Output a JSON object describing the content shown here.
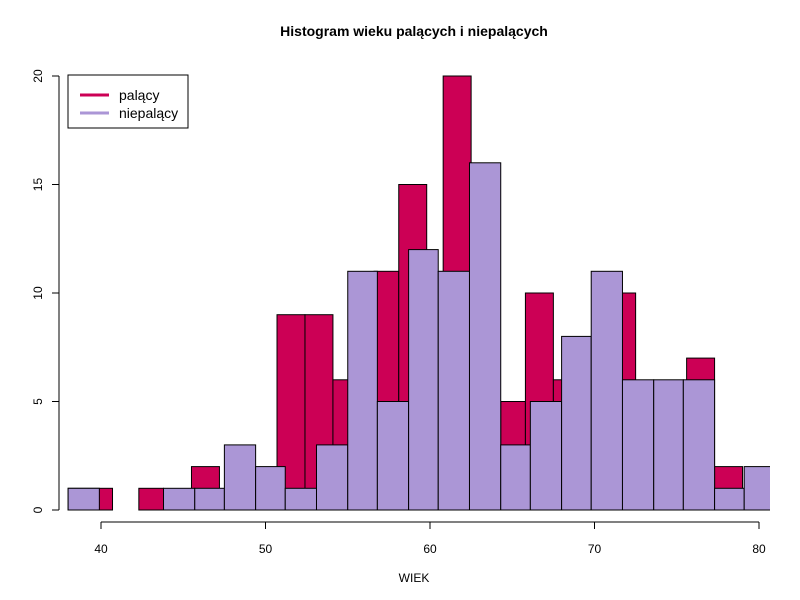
{
  "chart_data": {
    "type": "bar",
    "title": "Histogram wieku palących i niepalących",
    "xlabel": "WIEK",
    "ylabel": "",
    "xlim": [
      38,
      80.7
    ],
    "ylim": [
      0,
      20
    ],
    "x_ticks": [
      40,
      50,
      60,
      70,
      80
    ],
    "y_ticks": [
      0,
      5,
      10,
      15,
      20
    ],
    "legend_position": "top-left",
    "series": [
      {
        "name": "palący",
        "color": "#cc0055",
        "bins": [
          {
            "x0": 38.0,
            "x1": 40.7,
            "value": 1
          },
          {
            "x0": 42.3,
            "x1": 43.8,
            "value": 1
          },
          {
            "x0": 45.5,
            "x1": 47.2,
            "value": 2
          },
          {
            "x0": 50.7,
            "x1": 52.4,
            "value": 9
          },
          {
            "x0": 52.4,
            "x1": 54.1,
            "value": 9
          },
          {
            "x0": 54.1,
            "x1": 55.6,
            "value": 6
          },
          {
            "x0": 56.6,
            "x1": 58.1,
            "value": 11
          },
          {
            "x0": 58.1,
            "x1": 59.8,
            "value": 15
          },
          {
            "x0": 60.8,
            "x1": 62.5,
            "value": 20
          },
          {
            "x0": 64.3,
            "x1": 65.8,
            "value": 5
          },
          {
            "x0": 65.8,
            "x1": 67.5,
            "value": 10
          },
          {
            "x0": 67.5,
            "x1": 69.0,
            "value": 6
          },
          {
            "x0": 70.8,
            "x1": 72.5,
            "value": 10
          },
          {
            "x0": 75.6,
            "x1": 77.3,
            "value": 7
          },
          {
            "x0": 77.3,
            "x1": 79.0,
            "value": 2
          }
        ]
      },
      {
        "name": "niepalący",
        "color": "#ab96d6",
        "bins": [
          {
            "x0": 38.0,
            "x1": 39.9,
            "value": 1
          },
          {
            "x0": 43.8,
            "x1": 45.7,
            "value": 1
          },
          {
            "x0": 45.7,
            "x1": 47.5,
            "value": 1
          },
          {
            "x0": 47.5,
            "x1": 49.4,
            "value": 3
          },
          {
            "x0": 49.4,
            "x1": 51.2,
            "value": 2
          },
          {
            "x0": 51.2,
            "x1": 53.1,
            "value": 1
          },
          {
            "x0": 53.1,
            "x1": 55.0,
            "value": 3
          },
          {
            "x0": 55.0,
            "x1": 56.8,
            "value": 11
          },
          {
            "x0": 56.8,
            "x1": 58.7,
            "value": 5
          },
          {
            "x0": 58.7,
            "x1": 60.5,
            "value": 12
          },
          {
            "x0": 60.5,
            "x1": 62.4,
            "value": 11
          },
          {
            "x0": 62.4,
            "x1": 64.3,
            "value": 16
          },
          {
            "x0": 64.3,
            "x1": 66.1,
            "value": 3
          },
          {
            "x0": 66.1,
            "x1": 68.0,
            "value": 5
          },
          {
            "x0": 68.0,
            "x1": 69.8,
            "value": 8
          },
          {
            "x0": 69.8,
            "x1": 71.7,
            "value": 11
          },
          {
            "x0": 71.7,
            "x1": 73.6,
            "value": 6
          },
          {
            "x0": 73.6,
            "x1": 75.4,
            "value": 6
          },
          {
            "x0": 75.4,
            "x1": 77.3,
            "value": 6
          },
          {
            "x0": 77.3,
            "x1": 79.1,
            "value": 1
          },
          {
            "x0": 79.1,
            "x1": 81.0,
            "value": 2
          }
        ]
      }
    ]
  }
}
